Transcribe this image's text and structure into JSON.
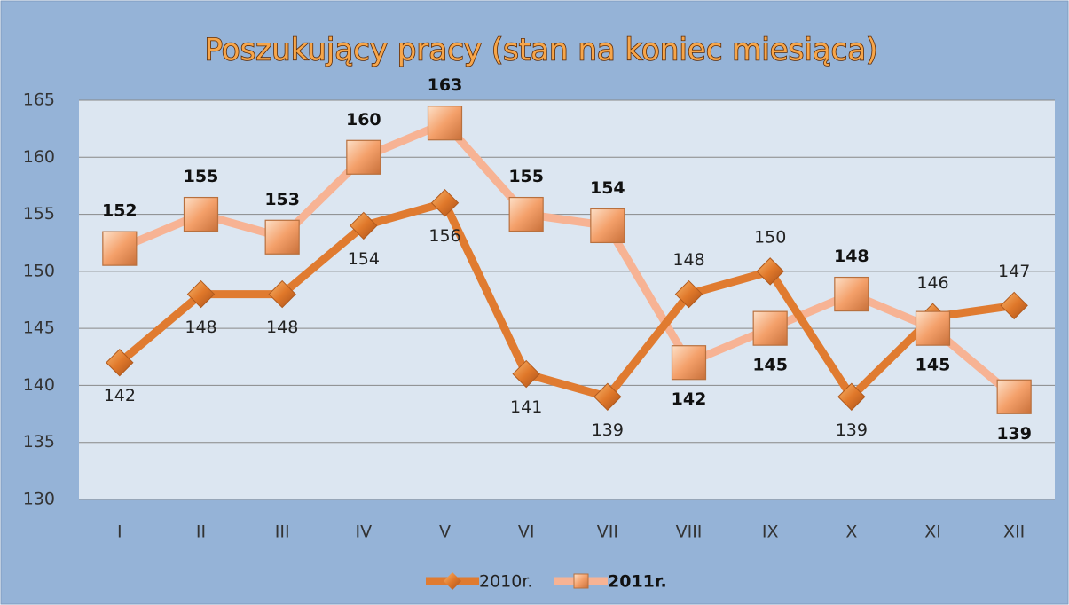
{
  "chart_data": {
    "type": "line",
    "title": "Poszukujący pracy (stan na koniec miesiąca)",
    "categories": [
      "I",
      "II",
      "III",
      "IV",
      "V",
      "VI",
      "VII",
      "VIII",
      "IX",
      "X",
      "XI",
      "XII"
    ],
    "series": [
      {
        "name": "2010r.",
        "color": "#e07b30",
        "values": [
          142,
          148,
          148,
          154,
          156,
          141,
          139,
          148,
          150,
          139,
          146,
          147
        ]
      },
      {
        "name": "2011r.",
        "color": "#f7b394",
        "values": [
          152,
          155,
          153,
          160,
          163,
          155,
          154,
          142,
          145,
          148,
          145,
          139
        ]
      }
    ],
    "ylim": [
      130,
      165
    ],
    "yticks": [
      130,
      135,
      140,
      145,
      150,
      155,
      160,
      165
    ],
    "grid": true,
    "legend": "bottom"
  }
}
